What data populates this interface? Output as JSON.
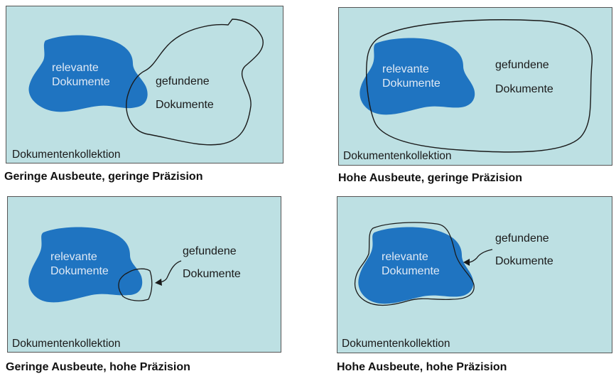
{
  "colors": {
    "panel_bg": "#bde0e3",
    "relevant_blob": "#1f74c1",
    "relevant_text": "#dfe9f5",
    "outline": "#1a1a1a"
  },
  "labels": {
    "relevant_line1": "relevante",
    "relevant_line2": "Dokumente",
    "found_line1": "gefundene",
    "found_line2": "Dokumente",
    "collection": "Dokumentenkollektion"
  },
  "captions": {
    "top_left": "Geringe Ausbeute, geringe Präzision",
    "top_right": "Hohe Ausbeute, geringe Präzision",
    "bottom_left": "Geringe Ausbeute, hohe Präzision",
    "bottom_right": "Hohe Ausbeute, hohe Präzision"
  }
}
